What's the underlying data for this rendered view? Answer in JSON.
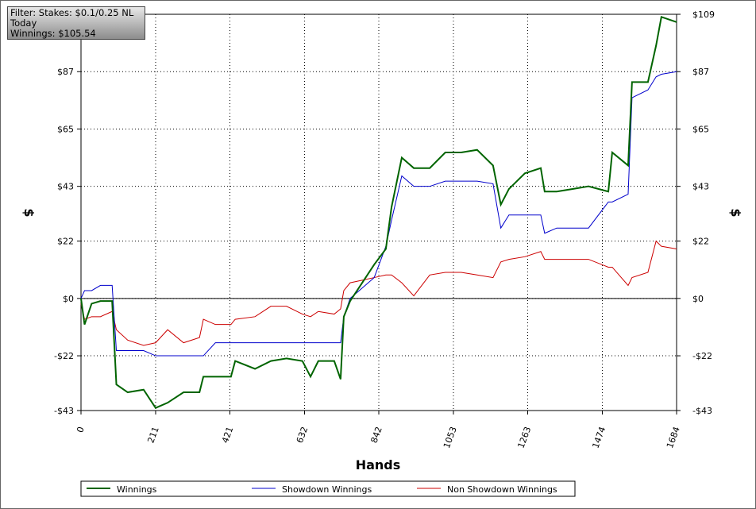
{
  "chart_data": {
    "type": "line",
    "annotations": [
      "Filter: Stakes: $0.1/0.25 NL",
      "Today",
      "Winnings: $105.54"
    ],
    "x_label": "Hands",
    "y_label": "$",
    "y2_label": "$",
    "x": [
      0,
      10,
      30,
      55,
      88,
      100,
      132,
      177,
      211,
      245,
      290,
      335,
      346,
      380,
      424,
      436,
      492,
      537,
      581,
      626,
      649,
      671,
      716,
      734,
      743,
      761,
      795,
      829,
      862,
      878,
      907,
      941,
      986,
      1030,
      1075,
      1120,
      1165,
      1187,
      1210,
      1255,
      1300,
      1311,
      1345,
      1390,
      1435,
      1491,
      1502,
      1547,
      1558,
      1603,
      1626,
      1641,
      1684
    ],
    "series": [
      {
        "name": "Winnings",
        "color": "#006400",
        "values": [
          0,
          -10,
          -2,
          -1,
          -1,
          -33,
          -36,
          -35,
          -42,
          -40,
          -36,
          -36,
          -30,
          -30,
          -30,
          -24,
          -27,
          -24,
          -23,
          -24,
          -30,
          -24,
          -24,
          -31,
          -7,
          -1,
          6,
          13,
          19,
          35,
          54,
          50,
          50,
          56,
          56,
          57,
          51,
          36,
          42,
          48,
          50,
          41,
          41,
          42,
          43,
          41,
          56,
          51,
          83,
          83,
          97,
          108,
          106
        ]
      },
      {
        "name": "Showdown Winnings",
        "color": "#0000cc",
        "values": [
          0,
          3,
          3,
          5,
          5,
          -20,
          -20,
          -20,
          -22,
          -22,
          -22,
          -22,
          -22,
          -17,
          -17,
          -17,
          -17,
          -17,
          -17,
          -17,
          -17,
          -17,
          -17,
          -17,
          -7,
          0,
          4,
          8,
          20,
          30,
          47,
          43,
          43,
          45,
          45,
          45,
          44,
          27,
          32,
          32,
          32,
          25,
          27,
          27,
          27,
          37,
          37,
          40,
          77,
          80,
          85,
          86,
          87
        ]
      },
      {
        "name": "Non Showdown Winnings",
        "color": "#cc0000",
        "values": [
          -2,
          -8,
          -7,
          -7,
          -5,
          -12,
          -16,
          -18,
          -17,
          -12,
          -17,
          -15,
          -8,
          -10,
          -10,
          -8,
          -7,
          -3,
          -3,
          -6,
          -7,
          -5,
          -6,
          -4,
          3,
          6,
          7,
          8,
          9,
          9,
          6,
          1,
          9,
          10,
          10,
          9,
          8,
          14,
          15,
          16,
          18,
          15,
          15,
          15,
          15,
          12,
          12,
          5,
          8,
          10,
          22,
          20,
          19
        ]
      }
    ],
    "xlim": [
      0,
      1684
    ],
    "xticks": [
      0,
      211,
      421,
      632,
      842,
      1053,
      1263,
      1474,
      1684
    ],
    "ylim": [
      -43,
      109
    ],
    "yticks": [
      {
        "value": -43,
        "label": "-$43"
      },
      {
        "value": -22,
        "label": "-$22"
      },
      {
        "value": 0,
        "label": "$0"
      },
      {
        "value": 22,
        "label": "$22"
      },
      {
        "value": 43,
        "label": "$43"
      },
      {
        "value": 65,
        "label": "$65"
      },
      {
        "value": 87,
        "label": "$87"
      },
      {
        "value": 109,
        "label": "$109"
      }
    ],
    "grid": true
  }
}
